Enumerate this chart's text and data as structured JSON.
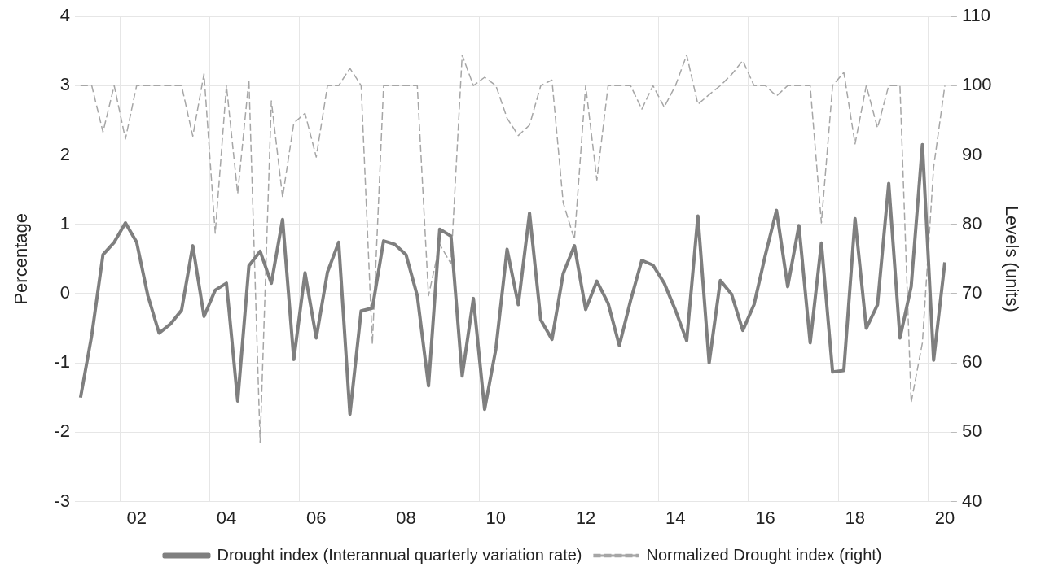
{
  "chart_data": {
    "type": "line",
    "categories": [
      null,
      null,
      null,
      null,
      null,
      "02",
      null,
      null,
      null,
      null,
      null,
      null,
      null,
      "04",
      null,
      null,
      null,
      null,
      null,
      null,
      null,
      "06",
      null,
      null,
      null,
      null,
      null,
      null,
      null,
      "08",
      null,
      null,
      null,
      null,
      null,
      null,
      null,
      "10",
      null,
      null,
      null,
      null,
      null,
      null,
      null,
      "12",
      null,
      null,
      null,
      null,
      null,
      null,
      null,
      "14",
      null,
      null,
      null,
      null,
      null,
      null,
      null,
      "16",
      null,
      null,
      null,
      null,
      null,
      null,
      null,
      "18",
      null,
      null,
      null,
      null,
      null,
      null,
      null,
      "20"
    ],
    "series": [
      {
        "name": "Drought index (Interannual quarterly variation rate)",
        "color": "#7f7f7f",
        "line_style": "solid",
        "values": [
          -1.5,
          -0.6,
          0.56,
          0.74,
          1.02,
          0.74,
          -0.03,
          -0.57,
          -0.44,
          -0.24,
          0.69,
          -0.33,
          0.05,
          0.15,
          -1.55,
          0.4,
          0.61,
          0.15,
          1.07,
          -0.95,
          0.3,
          -0.64,
          0.31,
          0.74,
          -1.74,
          -0.25,
          -0.21,
          0.76,
          0.71,
          0.56,
          -0.03,
          -1.33,
          0.93,
          0.83,
          -1.19,
          -0.07,
          -1.67,
          -0.8,
          0.64,
          -0.16,
          1.16,
          -0.38,
          -0.66,
          0.29,
          0.69,
          -0.23,
          0.18,
          -0.14,
          -0.75,
          -0.1,
          0.48,
          0.41,
          0.15,
          -0.24,
          -0.68,
          1.12,
          -1.0,
          0.19,
          -0.01,
          -0.53,
          -0.16,
          0.55,
          1.2,
          0.1,
          0.98,
          -0.71,
          0.73,
          -1.13,
          -1.11,
          1.08,
          -0.5,
          -0.16,
          1.59,
          -0.64,
          0.1,
          2.15,
          -0.96,
          0.45
        ]
      },
      {
        "name": "Normalized Drought index (right)",
        "color": "#a6a6a6",
        "line_style": "dashed",
        "axis": "y2",
        "values": [
          100,
          100,
          93.3,
          100,
          92.3,
          100,
          100,
          100,
          100,
          100,
          92.7,
          101.7,
          78.7,
          100,
          84.4,
          100.9,
          48.5,
          97.8,
          83.9,
          94.6,
          96,
          89.7,
          100,
          100,
          102.5,
          100,
          62.7,
          100,
          100,
          100,
          100,
          69.7,
          77.1,
          74.3,
          104.4,
          100,
          101.2,
          100,
          95.3,
          92.8,
          94.3,
          100,
          100.8,
          83.1,
          77.8,
          100,
          86.4,
          100,
          100,
          100,
          96.6,
          100,
          96.9,
          100,
          104.4,
          97.3,
          98.7,
          100,
          101.6,
          103.6,
          100,
          100,
          98.5,
          100,
          100,
          100,
          80.2,
          100,
          101.9,
          91.6,
          100,
          93.9,
          100,
          100,
          54.3,
          62.9,
          88.2,
          100
        ]
      }
    ],
    "ylabel": "Percentage",
    "y2label": "Levels (units)",
    "ylim": [
      -3,
      4
    ],
    "yticks": [
      -3,
      -2,
      -1,
      0,
      1,
      2,
      3,
      4
    ],
    "y2lim": [
      40,
      110
    ],
    "y2ticks": [
      40,
      50,
      60,
      70,
      80,
      90,
      100,
      110
    ],
    "grid": true,
    "legend": "bottom",
    "marker": "none"
  }
}
